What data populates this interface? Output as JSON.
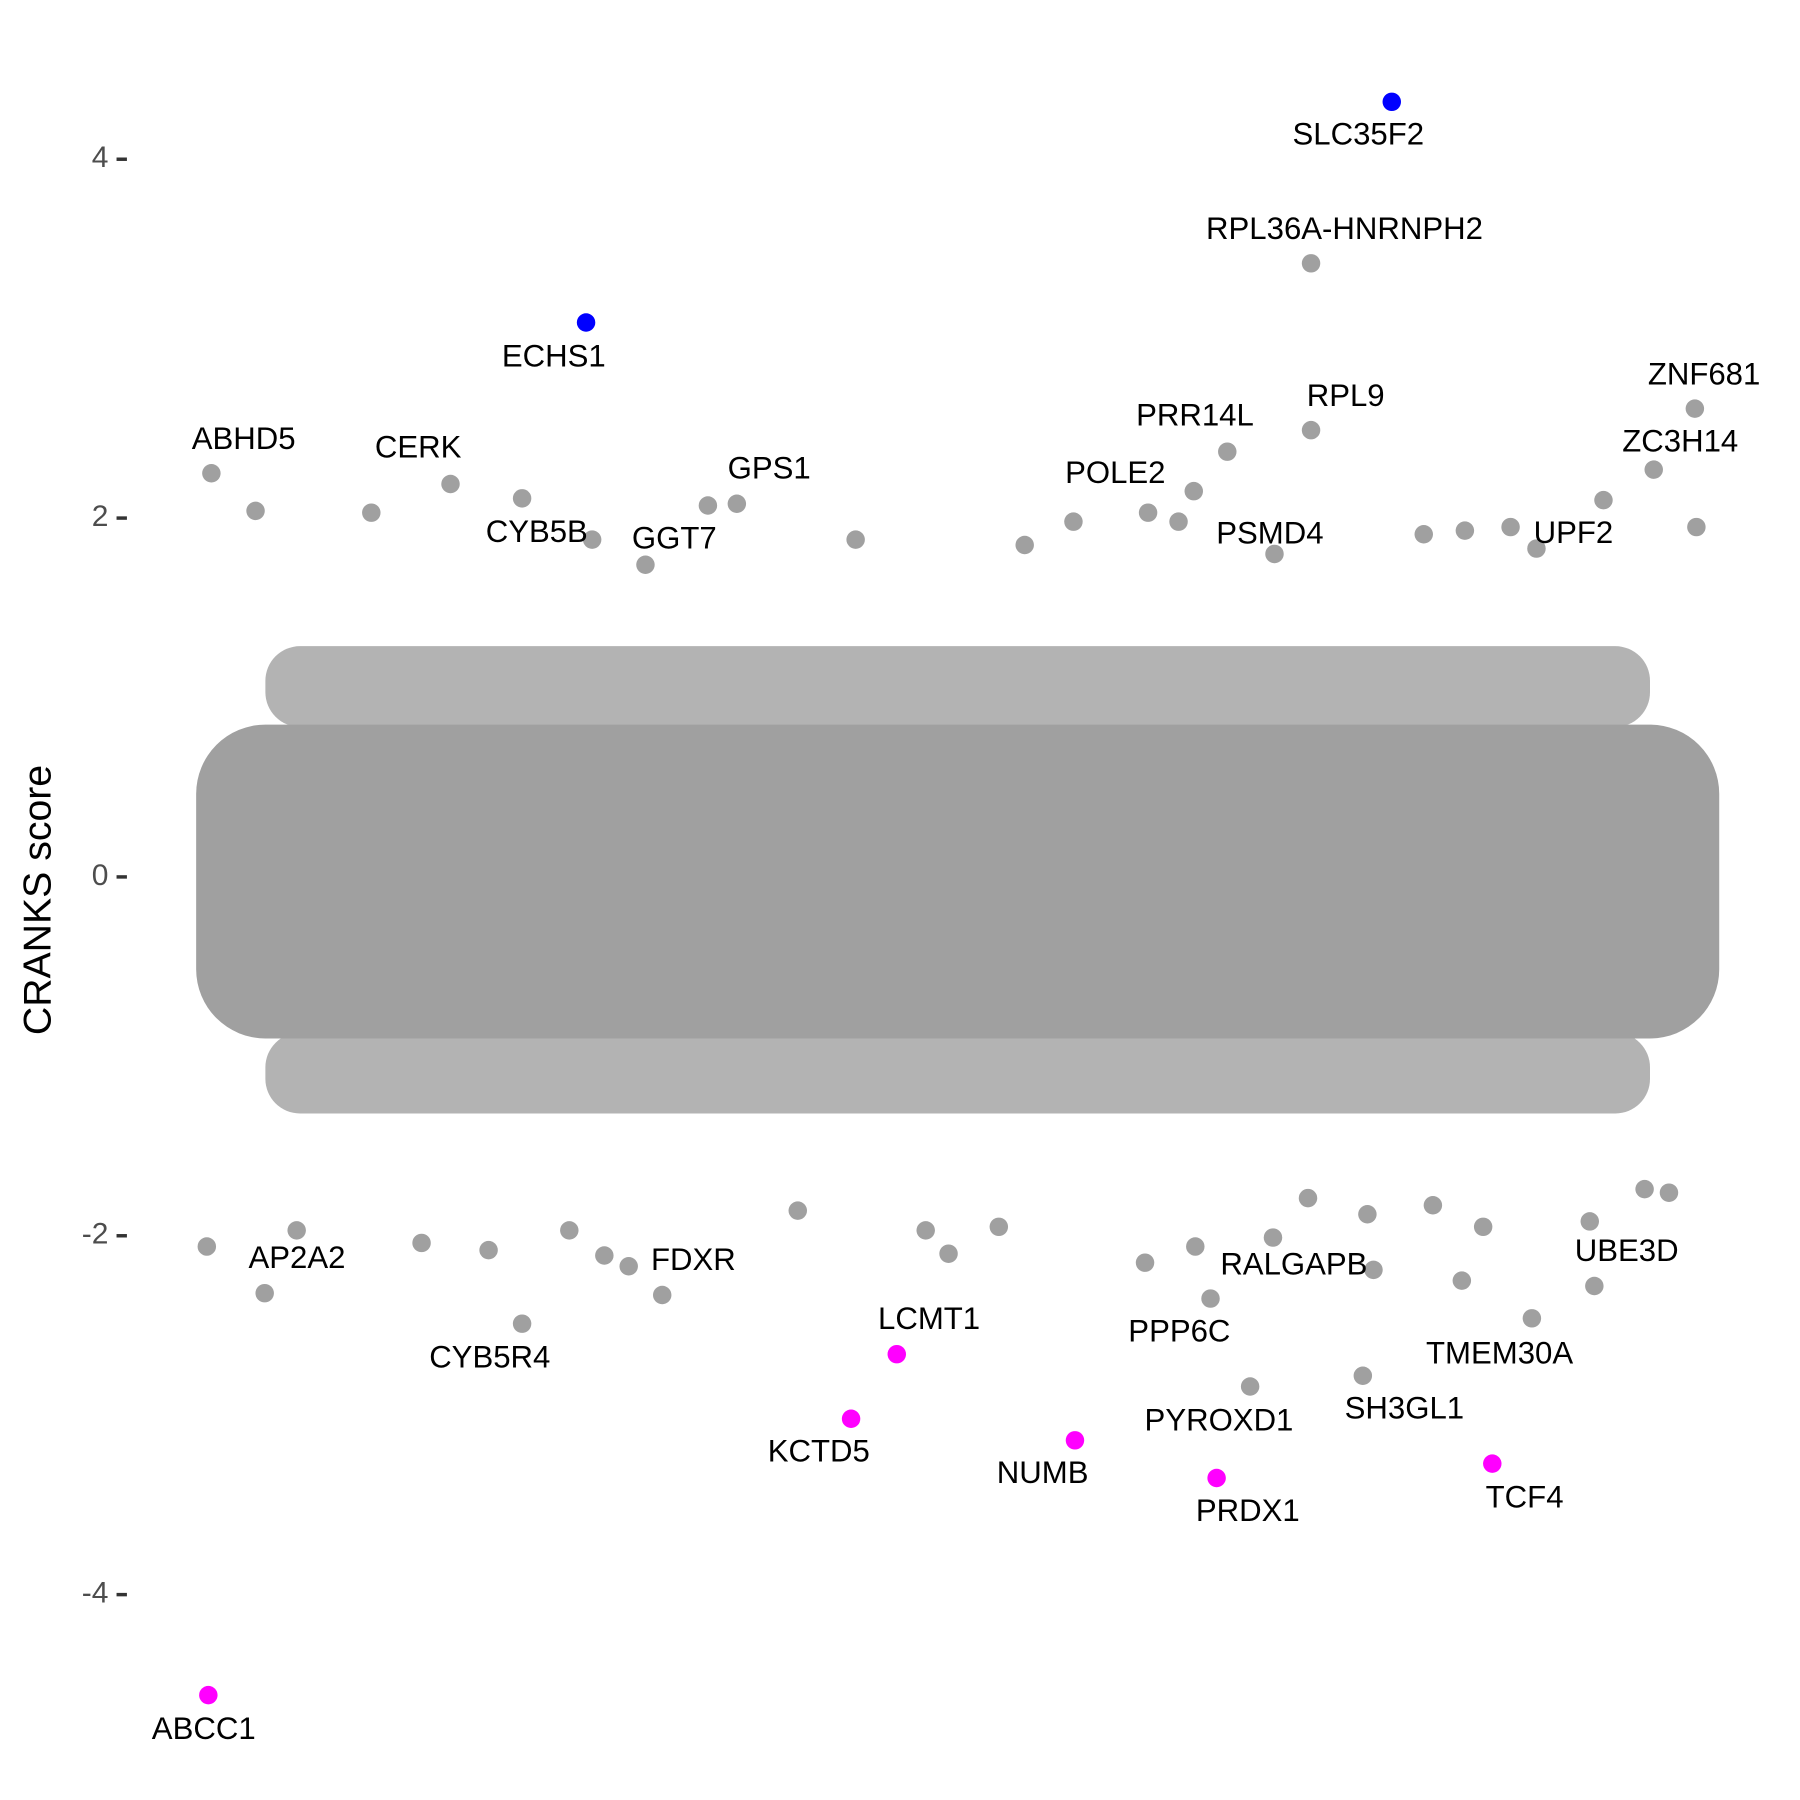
{
  "chart_data": {
    "type": "scatter",
    "y_label": "CRANKS score",
    "ylim": [
      -4.8,
      4.6
    ],
    "yticks": [
      -4,
      -2,
      0,
      2,
      4
    ],
    "xlim": [
      0,
      100
    ],
    "grid": false,
    "labeled_points": {
      "labels": [
        "SLC35F2",
        "RPL36A-HNRNPH2",
        "ECHS1",
        "ZNF681",
        "RPL9",
        "ABHD5",
        "CERK",
        "GPS1",
        "PRR14L",
        "ZC3H14",
        "POLE2",
        "CYB5B",
        "GGT7",
        "PSMD4",
        "UPF2",
        "AP2A2",
        "FDXR",
        "CYB5R4",
        "LCMT1",
        "KCTD5",
        "NUMB",
        "PRDX1",
        "TCF4",
        "ABCC1",
        "UBE3D",
        "RALGAPB",
        "PPP6C",
        "PYROXD1",
        "SH3GL1",
        "TMEM30A"
      ],
      "x": [
        78.5,
        73.2,
        25.6,
        98.4,
        73.2,
        1.0,
        16.7,
        35.5,
        67.7,
        95.7,
        65.5,
        26.0,
        29.5,
        70.8,
        88.0,
        4.5,
        30.6,
        21.4,
        46.0,
        43.0,
        57.7,
        67.0,
        85.1,
        0.8,
        91.8,
        77.3,
        66.6,
        69.2,
        76.6,
        87.7
      ],
      "y": [
        4.32,
        3.42,
        3.09,
        2.61,
        2.49,
        2.25,
        2.19,
        2.08,
        2.37,
        2.27,
        2.15,
        1.88,
        1.74,
        1.8,
        1.83,
        -2.32,
        -2.33,
        -2.49,
        -2.66,
        -3.02,
        -3.14,
        -3.35,
        -3.27,
        -4.56,
        -2.28,
        -2.19,
        -2.35,
        -2.84,
        -2.78,
        -2.46
      ],
      "colors": [
        "#0000ff",
        "#a0a0a0",
        "#0000ff",
        "#a0a0a0",
        "#a0a0a0",
        "#a0a0a0",
        "#a0a0a0",
        "#a0a0a0",
        "#a0a0a0",
        "#a0a0a0",
        "#a0a0a0",
        "#a0a0a0",
        "#a0a0a0",
        "#a0a0a0",
        "#a0a0a0",
        "#a0a0a0",
        "#a0a0a0",
        "#a0a0a0",
        "#ff00ff",
        "#ff00ff",
        "#ff00ff",
        "#ff00ff",
        "#ff00ff",
        "#ff00ff",
        "#a0a0a0",
        "#a0a0a0",
        "#a0a0a0",
        "#a0a0a0",
        "#a0a0a0",
        "#a0a0a0"
      ]
    },
    "other_points": {
      "color": "#a0a0a0",
      "x": [
        3.9,
        21.4,
        11.5,
        33.6,
        98.5,
        92.4,
        57.6,
        62.5,
        64.5,
        80.6,
        83.3,
        86.3,
        43.3,
        54.4,
        0.7,
        14.8,
        28.4,
        26.8,
        49.4,
        62.3,
        65.6,
        83.1,
        70.7,
        19.2,
        84.5,
        91.5,
        95.1,
        96.7,
        39.5,
        6.6,
        24.5,
        47.9,
        52.7,
        73.0,
        81.2,
        76.9
      ],
      "y": [
        2.04,
        2.11,
        2.03,
        2.07,
        1.95,
        2.1,
        1.98,
        2.03,
        1.98,
        1.91,
        1.93,
        1.95,
        1.88,
        1.85,
        -2.06,
        -2.04,
        -2.17,
        -2.11,
        -2.1,
        -2.15,
        -2.06,
        -2.25,
        -2.01,
        -2.08,
        -1.95,
        -1.92,
        -1.74,
        -1.76,
        -1.86,
        -1.97,
        -1.97,
        -1.97,
        -1.95,
        -1.79,
        -1.83,
        -1.88
      ]
    }
  }
}
